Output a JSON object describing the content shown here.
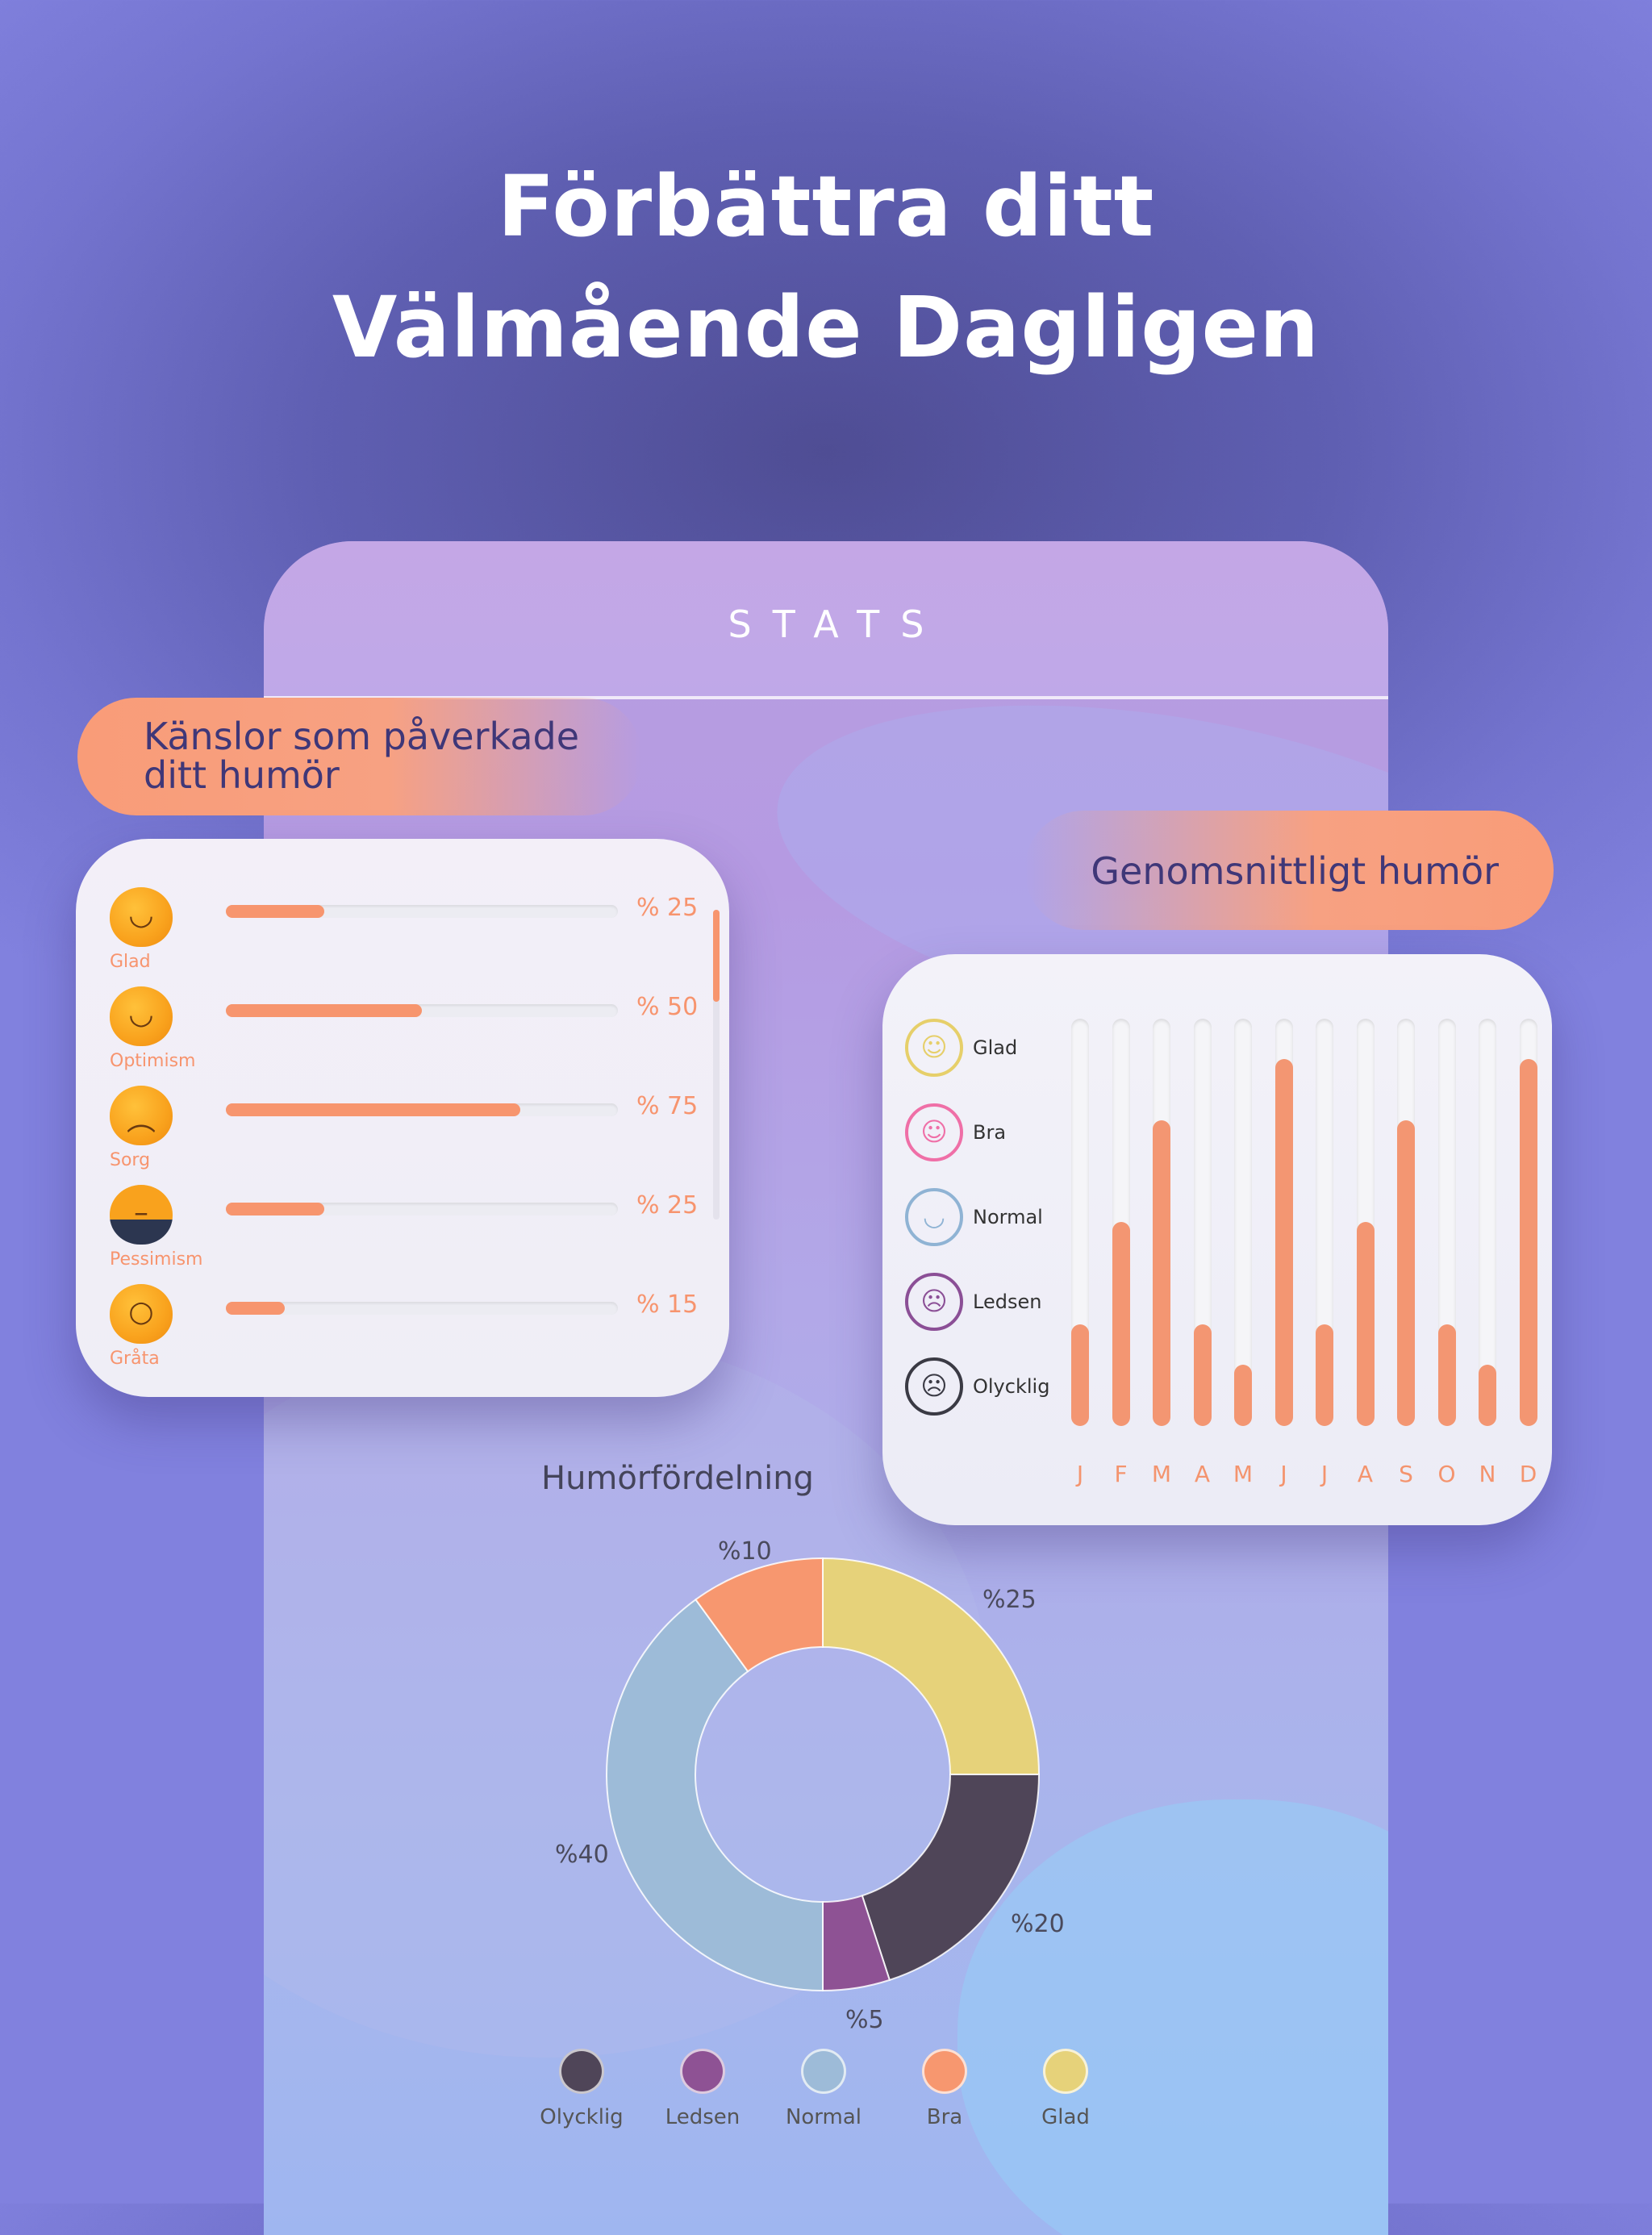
{
  "hero": {
    "line1": "Förbättra ditt",
    "line2": "Välmående Dagligen"
  },
  "phone": {
    "title": "STATS"
  },
  "feelings": {
    "title": "Känslor som påverkade ditt humör",
    "items": [
      {
        "label": "Glad",
        "percent_text": "% 25",
        "value": 25,
        "icon": "laughing-emoji-icon"
      },
      {
        "label": "Optimism",
        "percent_text": "% 50",
        "value": 50,
        "icon": "optimism-emoji-icon"
      },
      {
        "label": "Sorg",
        "percent_text": "% 75",
        "value": 75,
        "icon": "sad-emoji-icon"
      },
      {
        "label": "Pessimism",
        "percent_text": "% 25",
        "value": 25,
        "icon": "pessimism-emoji-icon"
      },
      {
        "label": "Gråta",
        "percent_text": "% 15",
        "value": 15,
        "icon": "crying-emoji-icon"
      }
    ]
  },
  "average": {
    "title": "Genomsnittligt humör",
    "moods": [
      {
        "label": "Glad",
        "icon": "happy-face-icon",
        "color": "#e6cf6a",
        "glyph": "☺"
      },
      {
        "label": "Bra",
        "icon": "good-face-icon",
        "color": "#ef6fa7",
        "glyph": "☺"
      },
      {
        "label": "Normal",
        "icon": "neutral-face-icon",
        "color": "#8fb3d4",
        "glyph": "◡"
      },
      {
        "label": "Ledsen",
        "icon": "sad-face-icon",
        "color": "#8b4f96",
        "glyph": "☹"
      },
      {
        "label": "Olycklig",
        "icon": "miserable-face-icon",
        "color": "#3a3a44",
        "glyph": "☹"
      }
    ],
    "months": [
      "J",
      "F",
      "M",
      "A",
      "M",
      "J",
      "J",
      "A",
      "S",
      "O",
      "N",
      "D"
    ],
    "levels": [
      1,
      3,
      4,
      1,
      0,
      5,
      1,
      3,
      4,
      1,
      0,
      5
    ]
  },
  "chart_data": {
    "type": "pie",
    "title": "Humörfördelning",
    "slices": [
      {
        "name": "Glad",
        "value": 25,
        "label": "%25",
        "color": "#e6d27a"
      },
      {
        "name": "Olycklig",
        "value": 20,
        "label": "%20",
        "color": "#4f4558"
      },
      {
        "name": "Ledsen",
        "value": 5,
        "label": "%5",
        "color": "#8e5294"
      },
      {
        "name": "Normal",
        "value": 40,
        "label": "%40",
        "color": "#9dbbd8"
      },
      {
        "name": "Bra",
        "value": 10,
        "label": "%10",
        "color": "#f7976f"
      }
    ],
    "legend": [
      {
        "name": "Olycklig",
        "color": "#4f4558"
      },
      {
        "name": "Ledsen",
        "color": "#8e5294"
      },
      {
        "name": "Normal",
        "color": "#9dbbd8"
      },
      {
        "name": "Bra",
        "color": "#f7976f"
      },
      {
        "name": "Glad",
        "color": "#e6d27a"
      }
    ]
  }
}
